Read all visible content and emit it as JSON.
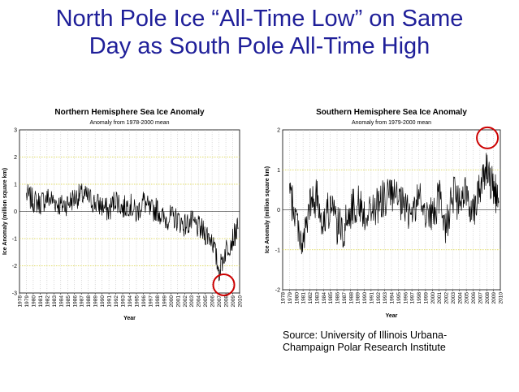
{
  "slide": {
    "title_line1": "North Pole Ice “All-Time Low” on Same",
    "title_line2": "Day as South Pole All-Time High",
    "source_line1": "Source:  University of Illinois Urbana-",
    "source_line2": "Champaign Polar Research Institute",
    "highlight_color": "#cc0000",
    "title_color": "#1f1f99"
  },
  "chart_data": [
    {
      "type": "line",
      "title": "Northern Hemisphere Sea Ice Anomaly",
      "subtitle": "Anomaly from 1978-2000 mean",
      "xlabel": "Year",
      "ylabel": "Ice Anomaly (million square km)",
      "xlim": [
        1978,
        2010
      ],
      "ylim": [
        -3,
        3
      ],
      "yticks": [
        -3,
        -2,
        -1,
        0,
        1,
        2,
        3
      ],
      "xticks": [
        "1978",
        "1979",
        "1980",
        "1981",
        "1982",
        "1983",
        "1984",
        "1985",
        "1986",
        "1987",
        "1988",
        "1989",
        "1990",
        "1991",
        "1992",
        "1993",
        "1994",
        "1995",
        "1996",
        "1997",
        "1998",
        "1999",
        "2000",
        "2001",
        "2002",
        "2003",
        "2004",
        "2005",
        "2006",
        "2007",
        "2008",
        "2009",
        "2010"
      ],
      "grid": true,
      "highlight": {
        "x": 2007.7,
        "y": -2.7
      },
      "series": [
        {
          "x": [
            1979,
            1980,
            1981,
            1982,
            1983,
            1984,
            1985,
            1986,
            1987,
            1988,
            1989,
            1990,
            1991,
            1992,
            1993,
            1994,
            1995,
            1996,
            1997,
            1998,
            1999,
            2000,
            2001,
            2002,
            2003,
            2004,
            2005,
            2006,
            2007,
            2008,
            2009,
            2009.8
          ],
          "values": [
            0.6,
            0.4,
            0.3,
            0.5,
            0.4,
            0.2,
            0.3,
            0.5,
            0.6,
            0.5,
            0.3,
            0.2,
            0.0,
            0.5,
            0.1,
            0.3,
            -0.1,
            0.4,
            0.0,
            0.1,
            -0.3,
            -0.2,
            -0.3,
            -0.5,
            -0.4,
            -0.6,
            -0.8,
            -1.0,
            -2.2,
            -1.4,
            -1.0,
            -0.6
          ]
        }
      ]
    },
    {
      "type": "line",
      "title": "Southern Hemisphere Sea Ice Anomaly",
      "subtitle": "Anomaly from 1979-2000 mean",
      "xlabel": "Year",
      "ylabel": "Ice Anomaly (million square km)",
      "xlim": [
        1978,
        2010
      ],
      "ylim": [
        -2,
        2
      ],
      "yticks": [
        -2,
        -1,
        0,
        1,
        2
      ],
      "xticks": [
        "1978",
        "1979",
        "1980",
        "1981",
        "1982",
        "1983",
        "1984",
        "1985",
        "1986",
        "1987",
        "1988",
        "1989",
        "1990",
        "1991",
        "1992",
        "1993",
        "1994",
        "1995",
        "1996",
        "1997",
        "1998",
        "1999",
        "2000",
        "2001",
        "2002",
        "2003",
        "2004",
        "2005",
        "2006",
        "2007",
        "2008",
        "2009",
        "2010"
      ],
      "grid": true,
      "highlight": {
        "x": 2008.1,
        "y": 1.8
      },
      "series": [
        {
          "x": [
            1979,
            1980,
            1981,
            1982,
            1983,
            1984,
            1985,
            1986,
            1987,
            1988,
            1989,
            1990,
            1991,
            1992,
            1993,
            1994,
            1995,
            1996,
            1997,
            1998,
            1999,
            2000,
            2001,
            2002,
            2003,
            2004,
            2005,
            2006,
            2007,
            2008,
            2009,
            2009.8
          ],
          "values": [
            0.4,
            -0.2,
            -0.9,
            0.1,
            0.3,
            -0.3,
            0.1,
            -0.4,
            -0.5,
            0.0,
            0.2,
            -0.1,
            0.0,
            0.1,
            0.3,
            0.4,
            0.2,
            0.0,
            -0.1,
            0.3,
            0.0,
            -0.2,
            0.3,
            -0.4,
            0.4,
            0.1,
            0.4,
            0.0,
            0.6,
            1.1,
            0.5,
            0.2
          ]
        }
      ]
    }
  ]
}
